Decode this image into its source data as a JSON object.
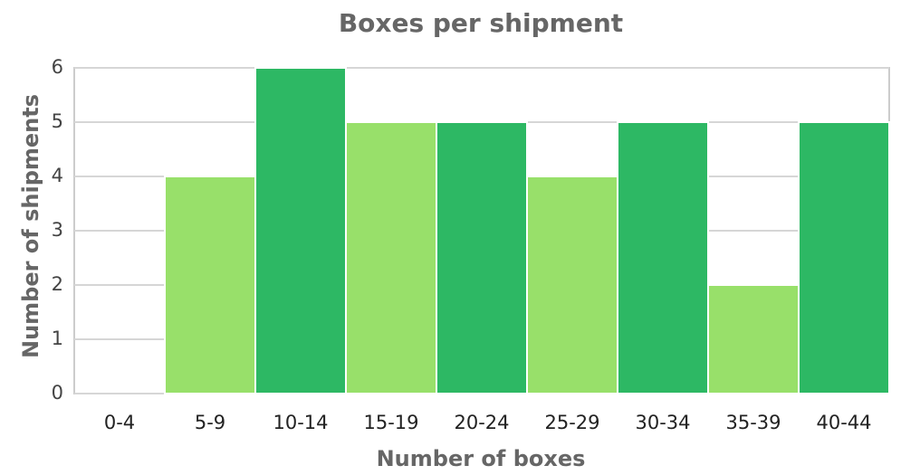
{
  "chart_data": {
    "type": "bar",
    "title": "Boxes per shipment",
    "x_label": "Number of boxes",
    "y_label": "Number of shipments",
    "categories": [
      "0-4",
      "5-9",
      "10-14",
      "15-19",
      "20-24",
      "25-29",
      "30-34",
      "35-39",
      "40-44"
    ],
    "values": [
      0,
      4,
      6,
      5,
      5,
      4,
      5,
      2,
      5
    ],
    "colors": [
      "#2db864",
      "#98e06a",
      "#2db864",
      "#98e06a",
      "#2db864",
      "#98e06a",
      "#2db864",
      "#98e06a",
      "#2db864"
    ],
    "ylim": [
      0,
      6
    ],
    "yticks": [
      0,
      1,
      2,
      3,
      4,
      5,
      6
    ],
    "grid": true
  }
}
